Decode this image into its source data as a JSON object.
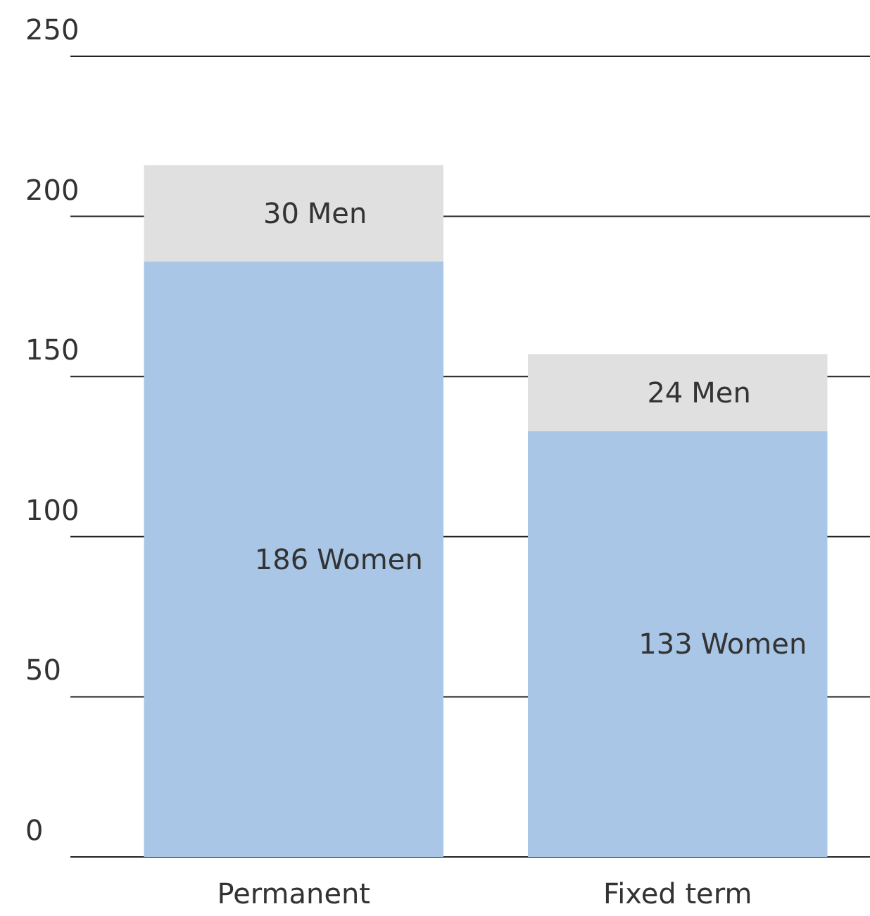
{
  "chart_data": {
    "type": "bar",
    "stacked": true,
    "categories": [
      "Permanent",
      "Fixed term"
    ],
    "series": [
      {
        "name": "Women",
        "color": "#a9c6e6",
        "values": [
          186,
          133
        ]
      },
      {
        "name": "Men",
        "color": "#e0e0e0",
        "values": [
          30,
          24
        ]
      }
    ],
    "data_labels": true,
    "ylim": [
      0,
      250
    ],
    "yticks": [
      0,
      50,
      100,
      150,
      200,
      250
    ],
    "grid": "y"
  }
}
